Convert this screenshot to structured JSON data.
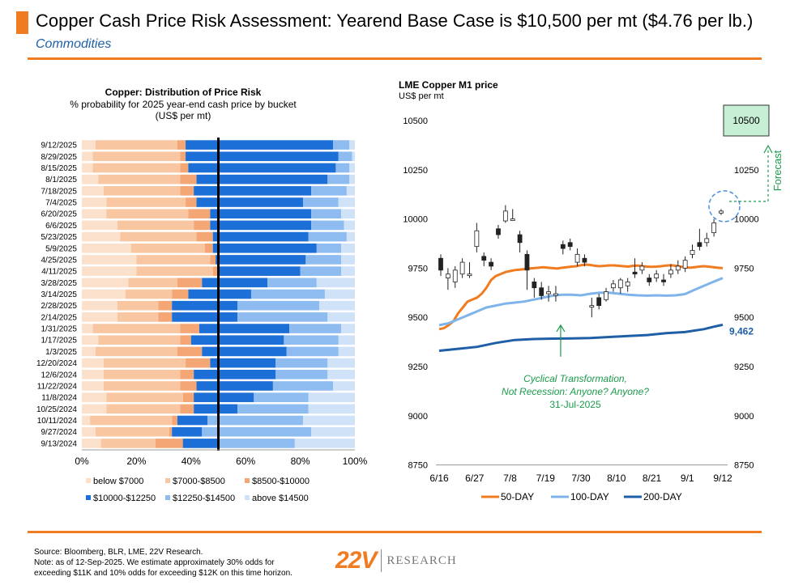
{
  "header": {
    "title": "Copper Cash Price Risk Assessment: Yearend Base Case is $10,500 per mt ($4.76 per lb.)",
    "subtitle": "Commodities"
  },
  "footer": {
    "source": "Source: Bloomberg, BLR, LME, 22V Research.\nNote: as of 12-Sep-2025. We estimate approximately 30% odds for\nexceeding $11K and 10% odds for exceeding $12K on this time horizon.",
    "logo_mark": "22V",
    "logo_word": "RESEARCH"
  },
  "chart_data": [
    {
      "type": "bar",
      "orientation": "horizontal-stacked-100",
      "title": "Copper: Distribution of Price Risk",
      "subtitle": "% probability for 2025 year-end cash price by bucket\n(US$ per mt)",
      "xlim": [
        0,
        100
      ],
      "xticks": [
        "0%",
        "20%",
        "40%",
        "60%",
        "80%",
        "100%"
      ],
      "reference_line": 50,
      "colors": [
        "#fbe0cc",
        "#f8c7a1",
        "#f4a775",
        "#1c6fd6",
        "#8fbcf0",
        "#cfe2f7"
      ],
      "categories": [
        "9/12/2025",
        "8/29/2025",
        "8/15/2025",
        "8/1/2025",
        "7/18/2025",
        "7/4/2025",
        "6/20/2025",
        "6/6/2025",
        "5/23/2025",
        "5/9/2025",
        "4/25/2025",
        "4/11/2025",
        "3/28/2025",
        "3/14/2025",
        "2/28/2025",
        "2/14/2025",
        "1/31/2025",
        "1/17/2025",
        "1/3/2025",
        "12/20/2024",
        "12/6/2024",
        "11/22/2024",
        "11/8/2024",
        "10/25/2024",
        "10/11/2024",
        "9/27/2024",
        "9/13/2024"
      ],
      "series": [
        {
          "name": "below $7000",
          "values": [
            5,
            4,
            4,
            6,
            8,
            9,
            9,
            13,
            14,
            18,
            20,
            20,
            17,
            16,
            13,
            13,
            4,
            6,
            5,
            8,
            8,
            8,
            9,
            9,
            3,
            5,
            7
          ]
        },
        {
          "name": "$7000-$8500",
          "values": [
            30,
            32,
            32,
            30,
            28,
            29,
            30,
            28,
            28,
            27,
            27,
            28,
            18,
            17,
            15,
            15,
            32,
            30,
            30,
            30,
            28,
            28,
            28,
            27,
            30,
            27,
            20
          ]
        },
        {
          "name": "$8500-$10000",
          "values": [
            3,
            2,
            3,
            6,
            5,
            4,
            8,
            6,
            6,
            3,
            2,
            2,
            9,
            6,
            5,
            5,
            7,
            4,
            9,
            9,
            5,
            6,
            4,
            5,
            2,
            1,
            10
          ]
        },
        {
          "name": "$10000-$12250",
          "values": [
            54,
            56,
            54,
            48,
            43,
            39,
            37,
            37,
            35,
            38,
            33,
            30,
            24,
            23,
            24,
            24,
            33,
            34,
            31,
            24,
            30,
            28,
            22,
            16,
            11,
            11,
            13
          ]
        },
        {
          "name": "$12250-$14500",
          "values": [
            6,
            5,
            5,
            8,
            13,
            13,
            11,
            12,
            14,
            9,
            13,
            15,
            18,
            27,
            30,
            33,
            19,
            20,
            19,
            19,
            19,
            22,
            20,
            26,
            35,
            40,
            28
          ]
        },
        {
          "name": "above $14500",
          "values": [
            2,
            1,
            2,
            2,
            3,
            6,
            5,
            4,
            3,
            5,
            5,
            5,
            14,
            11,
            13,
            10,
            5,
            6,
            6,
            10,
            10,
            8,
            17,
            17,
            19,
            16,
            22
          ]
        }
      ]
    },
    {
      "type": "line",
      "subtype": "candlestick-with-moving-averages",
      "title": "LME Copper M1 price",
      "ylabel": "US$ per mt",
      "ylim": [
        8750,
        10500
      ],
      "yticks": [
        "8750",
        "9000",
        "9250",
        "9500",
        "9750",
        "10000",
        "10250",
        "10500"
      ],
      "xticks": [
        "6/16",
        "6/27",
        "7/8",
        "7/19",
        "7/30",
        "8/10",
        "8/21",
        "9/1",
        "9/12"
      ],
      "forecast": {
        "value": "10500",
        "label": "Forecast"
      },
      "last_200day_label": "9,462",
      "annotation": "Cyclical Transformation,\nNot Recession: Anyone? Anyone?\n31-Jul-2025",
      "candles": [
        {
          "open": 9800,
          "close": 9740,
          "high": 9820,
          "low": 9710
        },
        {
          "open": 9700,
          "close": 9720,
          "high": 9750,
          "low": 9640
        },
        {
          "open": 9680,
          "close": 9740,
          "high": 9760,
          "low": 9650
        },
        {
          "open": 9720,
          "close": 9780,
          "high": 9800,
          "low": 9700
        },
        {
          "open": 9720,
          "close": 9720,
          "high": 9780,
          "low": 9700
        },
        {
          "open": 9860,
          "close": 9940,
          "high": 9980,
          "low": 9830
        },
        {
          "open": 9810,
          "close": 9790,
          "high": 9830,
          "low": 9760
        },
        {
          "open": 9780,
          "close": 9760,
          "high": 9800,
          "low": 9740
        },
        {
          "open": 9950,
          "close": 9920,
          "high": 9970,
          "low": 9900
        },
        {
          "open": 9990,
          "close": 10040,
          "high": 10070,
          "low": 9980
        },
        {
          "open": 10000,
          "close": 10000,
          "high": 10050,
          "low": 9990
        },
        {
          "open": 9920,
          "close": 9880,
          "high": 9940,
          "low": 9830
        },
        {
          "open": 9820,
          "close": 9740,
          "high": 9840,
          "low": 9640
        },
        {
          "open": 9680,
          "close": 9650,
          "high": 9700,
          "low": 9600
        },
        {
          "open": 9650,
          "close": 9610,
          "high": 9680,
          "low": 9590
        },
        {
          "open": 9620,
          "close": 9630,
          "high": 9660,
          "low": 9580
        },
        {
          "open": 9620,
          "close": 9620,
          "high": 9660,
          "low": 9580
        },
        {
          "open": 9870,
          "close": 9850,
          "high": 9890,
          "low": 9820
        },
        {
          "open": 9880,
          "close": 9860,
          "high": 9900,
          "low": 9840
        },
        {
          "open": 9780,
          "close": 9820,
          "high": 9850,
          "low": 9760
        },
        {
          "open": 9800,
          "close": 9780,
          "high": 9820,
          "low": 9760
        },
        {
          "open": 9560,
          "close": 9560,
          "high": 9600,
          "low": 9500
        },
        {
          "open": 9600,
          "close": 9560,
          "high": 9620,
          "low": 9540
        },
        {
          "open": 9590,
          "close": 9630,
          "high": 9650,
          "low": 9580
        },
        {
          "open": 9650,
          "close": 9670,
          "high": 9690,
          "low": 9630
        },
        {
          "open": 9650,
          "close": 9690,
          "high": 9700,
          "low": 9620
        },
        {
          "open": 9660,
          "close": 9680,
          "high": 9700,
          "low": 9630
        },
        {
          "open": 9730,
          "close": 9720,
          "high": 9800,
          "low": 9700
        },
        {
          "open": 9740,
          "close": 9760,
          "high": 9780,
          "low": 9720
        },
        {
          "open": 9700,
          "close": 9680,
          "high": 9720,
          "low": 9660
        },
        {
          "open": 9700,
          "close": 9720,
          "high": 9740,
          "low": 9680
        },
        {
          "open": 9690,
          "close": 9680,
          "high": 9720,
          "low": 9660
        },
        {
          "open": 9720,
          "close": 9740,
          "high": 9770,
          "low": 9700
        },
        {
          "open": 9740,
          "close": 9760,
          "high": 9790,
          "low": 9720
        },
        {
          "open": 9750,
          "close": 9790,
          "high": 9810,
          "low": 9730
        },
        {
          "open": 9820,
          "close": 9840,
          "high": 9870,
          "low": 9800
        },
        {
          "open": 9880,
          "close": 9860,
          "high": 9950,
          "low": 9840
        },
        {
          "open": 9880,
          "close": 9900,
          "high": 9930,
          "low": 9860
        },
        {
          "open": 9930,
          "close": 9980,
          "high": 10000,
          "low": 9910
        },
        {
          "open": 10030,
          "close": 10040,
          "high": 10050,
          "low": 10020
        }
      ],
      "series": [
        {
          "name": "50-DAY",
          "color": "#f07c22",
          "x": [
            0,
            6,
            12,
            18,
            24,
            30,
            36,
            42,
            48,
            54,
            60,
            66,
            72,
            78,
            84,
            90,
            96,
            102,
            108,
            114,
            120,
            126,
            132,
            138,
            144,
            150,
            156,
            162,
            168,
            174,
            180,
            186,
            192,
            198,
            204,
            210,
            216,
            222,
            228,
            234,
            240,
            246,
            252,
            258,
            264,
            270,
            276,
            282,
            288,
            294,
            300,
            306,
            312,
            318,
            324,
            330,
            336,
            342,
            348,
            354,
            360
          ],
          "values": [
            9440,
            9445,
            9460,
            9480,
            9520,
            9550,
            9580,
            9590,
            9600,
            9620,
            9650,
            9690,
            9710,
            9720,
            9730,
            9735,
            9740,
            9742,
            9745,
            9748,
            9750,
            9752,
            9755,
            9752,
            9750,
            9748,
            9752,
            9755,
            9758,
            9760,
            9765,
            9768,
            9766,
            9762,
            9760,
            9762,
            9764,
            9764,
            9762,
            9760,
            9758,
            9762,
            9763,
            9760,
            9758,
            9757,
            9758,
            9760,
            9763,
            9765,
            9762,
            9758,
            9755,
            9752,
            9755,
            9758,
            9760,
            9758,
            9755,
            9752,
            9750
          ]
        },
        {
          "name": "100-DAY",
          "color": "#7eb4ea",
          "x": [
            0,
            12,
            24,
            36,
            48,
            60,
            72,
            84,
            96,
            108,
            120,
            132,
            144,
            156,
            168,
            180,
            192,
            204,
            216,
            228,
            240,
            252,
            264,
            276,
            288,
            300,
            312,
            324,
            336,
            348,
            360
          ],
          "values": [
            9460,
            9470,
            9490,
            9510,
            9530,
            9550,
            9560,
            9570,
            9575,
            9580,
            9590,
            9600,
            9610,
            9615,
            9615,
            9612,
            9620,
            9625,
            9625,
            9620,
            9615,
            9612,
            9610,
            9612,
            9610,
            9612,
            9618,
            9640,
            9660,
            9680,
            9700
          ]
        },
        {
          "name": "200-DAY",
          "color": "#1f5fa8",
          "x": [
            0,
            24,
            48,
            72,
            96,
            120,
            144,
            168,
            192,
            216,
            240,
            264,
            288,
            312,
            336,
            348,
            360
          ],
          "values": [
            9330,
            9340,
            9350,
            9370,
            9385,
            9390,
            9392,
            9393,
            9395,
            9400,
            9405,
            9410,
            9420,
            9425,
            9440,
            9452,
            9462
          ]
        }
      ]
    }
  ]
}
